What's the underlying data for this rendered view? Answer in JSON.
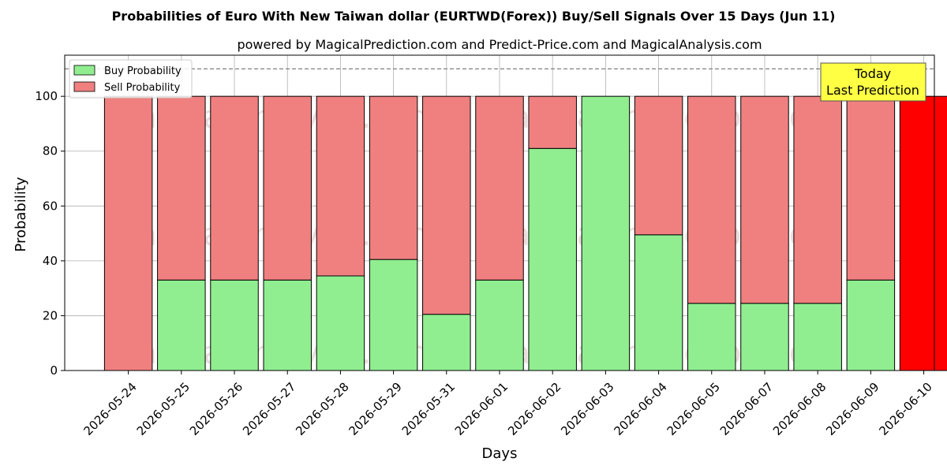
{
  "chart_data": {
    "type": "bar",
    "stacked": true,
    "title": "Probabilities of Euro With New Taiwan dollar (EURTWD(Forex)) Buy/Sell Signals Over 15 Days (Jun 11)",
    "subtitle": "powered by MagicalPrediction.com and Predict-Price.com and MagicalAnalysis.com",
    "xlabel": "Days",
    "ylabel": "Probability",
    "ylim": [
      0,
      115
    ],
    "yticks": [
      0,
      20,
      40,
      60,
      80,
      100
    ],
    "grid": true,
    "legend_position": "top-left",
    "reference_line": 110,
    "categories": [
      "2026-05-24",
      "2026-05-25",
      "2026-05-26",
      "2026-05-27",
      "2026-05-28",
      "2026-05-29",
      "2026-05-31",
      "2026-06-01",
      "2026-06-02",
      "2026-06-03",
      "2026-06-04",
      "2026-06-05",
      "2026-06-07",
      "2026-06-08",
      "2026-06-09",
      "2026-06-10"
    ],
    "series": [
      {
        "name": "Buy Probability",
        "color": "#90ee90",
        "values": [
          0,
          33,
          33,
          33,
          34.5,
          40.5,
          20.5,
          33,
          81,
          100,
          49.5,
          24.5,
          24.5,
          24.5,
          33,
          0
        ]
      },
      {
        "name": "Sell Probability",
        "color": "#f08080",
        "values": [
          100,
          67,
          67,
          67,
          65.5,
          59.5,
          79.5,
          67,
          19,
          0,
          50.5,
          75.5,
          75.5,
          75.5,
          67,
          100
        ]
      }
    ],
    "highlight": {
      "category": "2026-06-10",
      "color": "#ff0000"
    },
    "annotation": {
      "line1": "Today",
      "line2": "Last Prediction",
      "color": "#ffff44"
    },
    "watermarks": [
      "MagicalAnalysis.com",
      "MagicalPrediction.com"
    ]
  }
}
